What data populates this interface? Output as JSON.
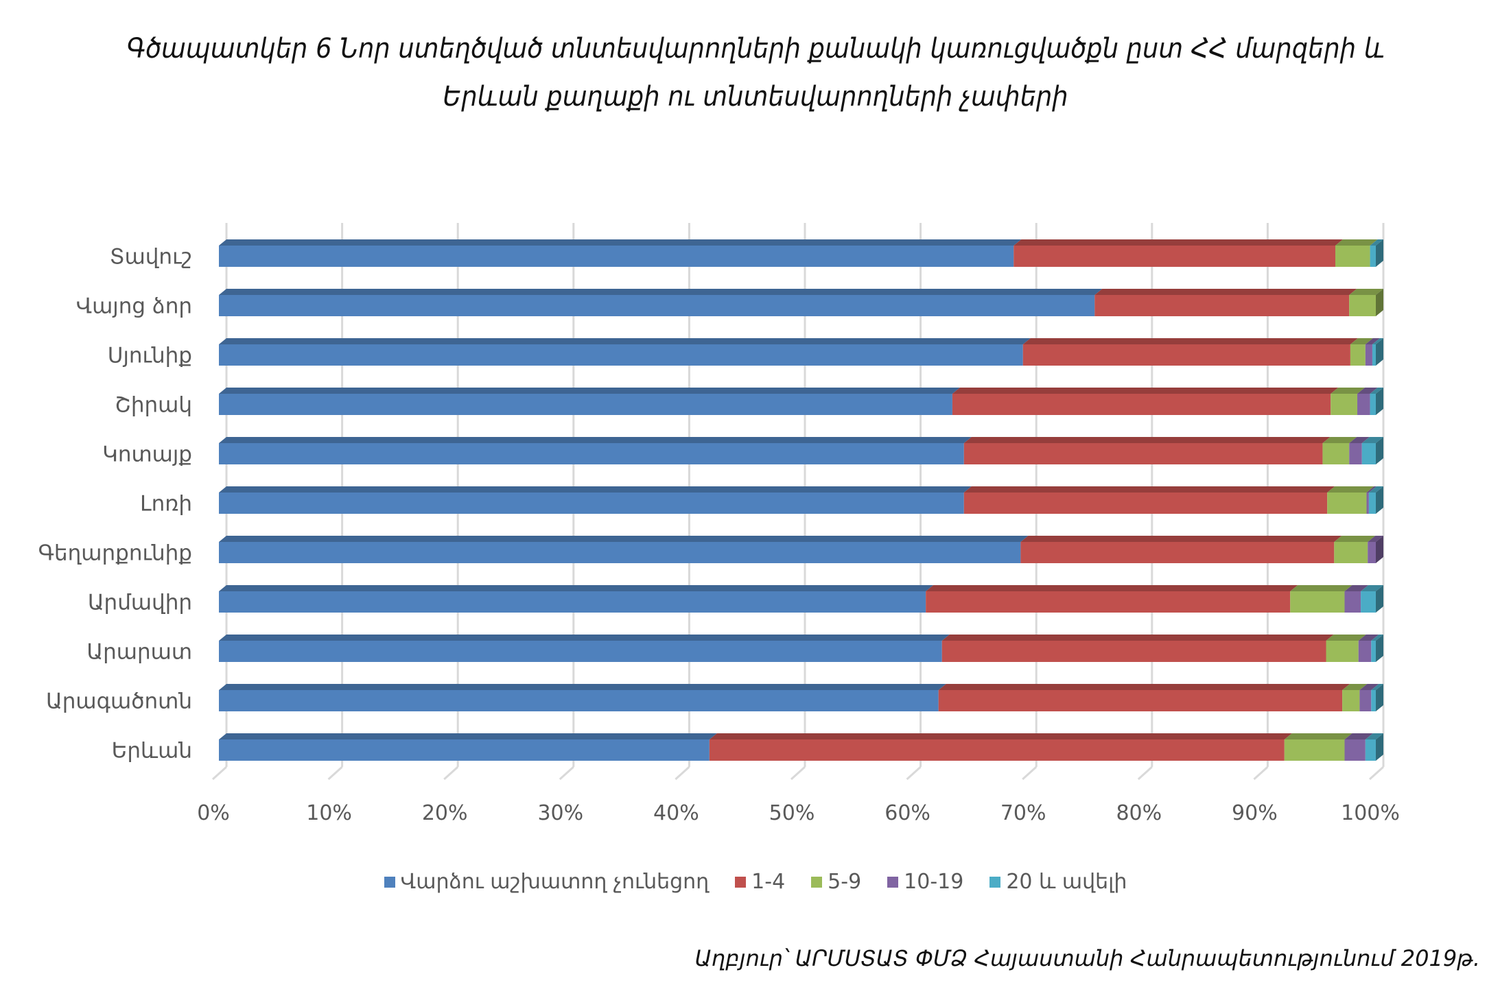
{
  "title": {
    "line1": "Գծապատկեր 6 Նոր ստեղծված տնտեսվարողների քանակի կառուցվածքն ըստ ՀՀ մարզերի և",
    "line2": "Երևան քաղաքի ու տնտեսվարողների չափերի"
  },
  "source": "Աղբյուր՝ ԱՐՄՍՏԱՏ ՓՄՁ Հայաստանի Հանրապետությունում 2019թ.",
  "chart_data": {
    "type": "bar",
    "orientation": "horizontal",
    "stacked": "percent",
    "style": "3d",
    "title": "Գծապատկեր 6 Նոր ստեղծված տնտեսվարողների քանակի կառուցվածքն ըստ ՀՀ մարզերի և Երևան քաղաքի ու տնտեսվարողների չափերի",
    "xlabel": "",
    "ylabel": "",
    "xlim": [
      0,
      100
    ],
    "x_ticks": [
      "0%",
      "10%",
      "20%",
      "30%",
      "40%",
      "50%",
      "60%",
      "70%",
      "80%",
      "90%",
      "100%"
    ],
    "grid": true,
    "legend_position": "bottom",
    "categories": [
      "Տավուշ",
      "Վայոց ձոր",
      "Սյունիք",
      "Շիրակ",
      "Կոտայք",
      "Լոռի",
      "Գեղարքունիք",
      "Արմավիր",
      "Արարատ",
      "Արագածոտն",
      "Երևան"
    ],
    "series": [
      {
        "name": "Վարձու աշխատող չունեցող",
        "color": "#4F81BD",
        "values": [
          68.7,
          75.7,
          69.5,
          63.4,
          64.4,
          64.4,
          69.3,
          61.1,
          62.5,
          62.2,
          42.4
        ]
      },
      {
        "name": "1-4",
        "color": "#C0504D",
        "values": [
          27.8,
          22.0,
          28.3,
          32.7,
          31.0,
          31.4,
          27.1,
          31.5,
          33.2,
          34.9,
          49.7
        ]
      },
      {
        "name": "5-9",
        "color": "#9BBB59",
        "values": [
          3.0,
          2.3,
          1.3,
          2.3,
          2.3,
          3.4,
          2.9,
          4.7,
          2.8,
          1.5,
          5.2
        ]
      },
      {
        "name": "10-19",
        "color": "#8064A2",
        "values": [
          0.0,
          0.0,
          0.6,
          1.1,
          1.1,
          0.2,
          0.7,
          1.4,
          1.1,
          1.0,
          1.8
        ]
      },
      {
        "name": "20 և ավելի",
        "color": "#4BACC6",
        "values": [
          0.5,
          0.0,
          0.3,
          0.5,
          1.2,
          0.6,
          0.0,
          1.3,
          0.4,
          0.4,
          0.9
        ]
      }
    ]
  }
}
